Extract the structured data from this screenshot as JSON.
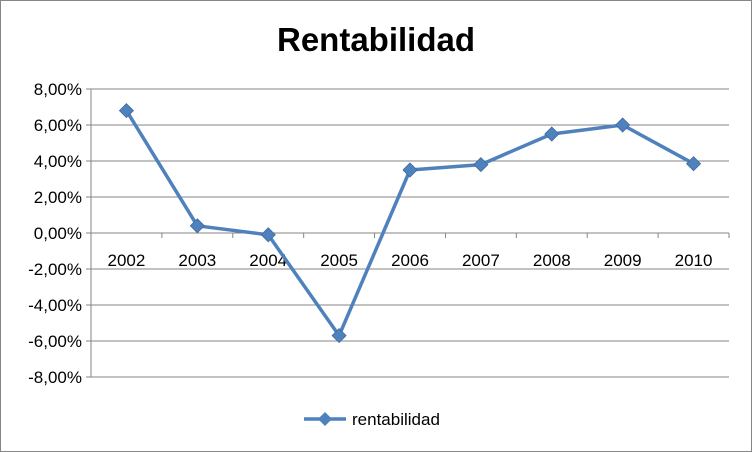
{
  "chart_data": {
    "type": "line",
    "title": "Rentabilidad",
    "categories": [
      "2002",
      "2003",
      "2004",
      "2005",
      "2006",
      "2007",
      "2008",
      "2009",
      "2010"
    ],
    "series": [
      {
        "name": "rentabilidad",
        "values": [
          6.8,
          0.4,
          -0.1,
          -5.7,
          3.5,
          3.8,
          5.5,
          6.0,
          3.85
        ],
        "color": "#4f81bd",
        "marker": "diamond"
      }
    ],
    "y_ticks": [
      "-8,00%",
      "-6,00%",
      "-4,00%",
      "-2,00%",
      "0,00%",
      "2,00%",
      "4,00%",
      "6,00%",
      "8,00%"
    ],
    "ylim": [
      -8,
      8
    ],
    "gridlines": "horizontal",
    "legend_position": "bottom"
  }
}
